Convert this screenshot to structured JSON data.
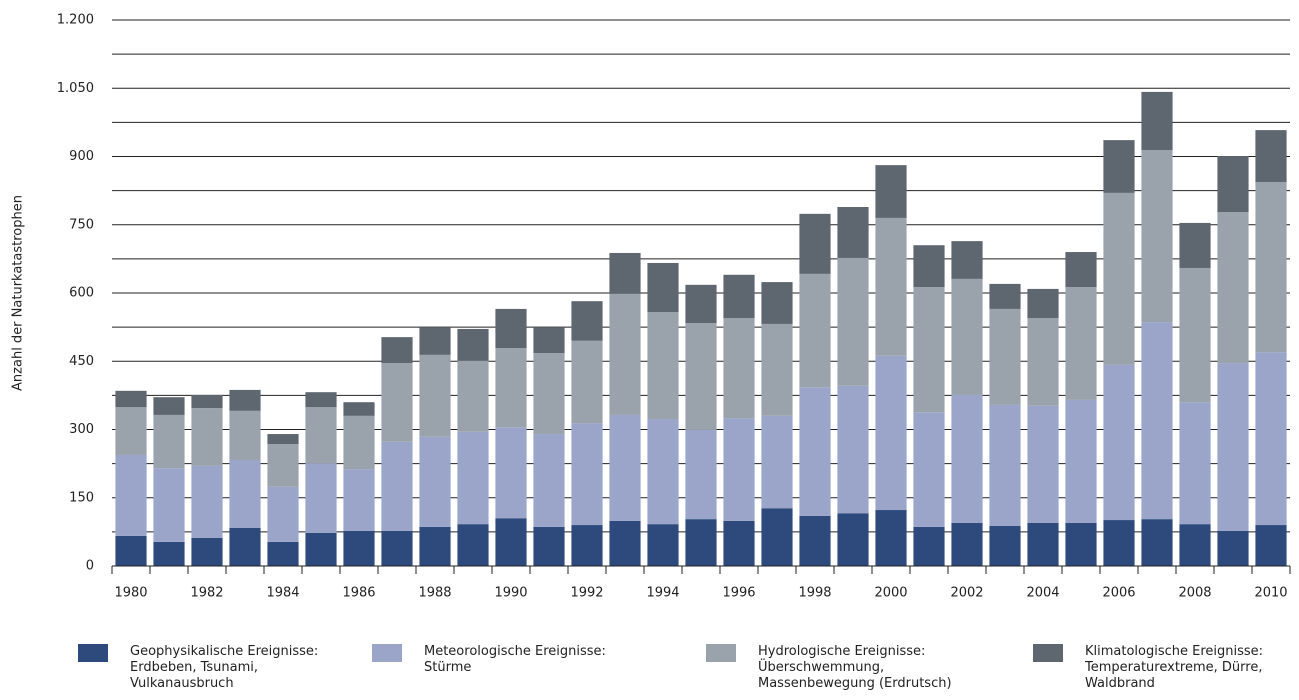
{
  "chart_data": {
    "type": "stacked_bar",
    "y_label": "Anzahl der Naturkatastrophen",
    "categories": [
      "1980",
      null,
      "1982",
      null,
      "1984",
      null,
      "1986",
      null,
      "1988",
      null,
      "1990",
      null,
      "1992",
      null,
      "1994",
      null,
      "1996",
      null,
      "1998",
      null,
      "2000",
      null,
      "2002",
      null,
      "2004",
      null,
      "2006",
      null,
      "2008",
      null,
      "2010"
    ],
    "series": [
      {
        "name": "Geophysikalische Ereignisse: Erdbeben, Tsunami, Vulkanausbruch",
        "color": "#2e4a7d",
        "values": [
          66,
          53,
          62,
          84,
          53,
          73,
          77,
          77,
          86,
          92,
          105,
          86,
          90,
          99,
          92,
          103,
          99,
          127,
          110,
          116,
          123,
          86,
          95,
          88,
          95,
          95,
          101,
          103,
          92,
          77,
          90
        ]
      },
      {
        "name": "Meteorologische Ereignisse: Stürme",
        "color": "#9aa5c9",
        "values": [
          178,
          162,
          158,
          149,
          121,
          153,
          136,
          196,
          198,
          203,
          200,
          204,
          224,
          233,
          231,
          196,
          226,
          203,
          283,
          280,
          339,
          252,
          281,
          266,
          257,
          270,
          341,
          433,
          268,
          369,
          380
        ]
      },
      {
        "name": "Hydrologische Ereignisse: Überschwemmung, Massenbewegung (Erdrutsch)",
        "color": "#9aa3ab",
        "values": [
          105,
          117,
          127,
          108,
          94,
          123,
          117,
          173,
          180,
          156,
          174,
          178,
          181,
          266,
          235,
          235,
          220,
          202,
          249,
          281,
          303,
          275,
          255,
          211,
          193,
          248,
          378,
          378,
          295,
          332,
          374
        ]
      },
      {
        "name": "Klimatologische Ereignisse: Temperaturextreme, Dürre, Waldbrand",
        "color": "#5e6670",
        "values": [
          36,
          39,
          29,
          46,
          22,
          33,
          30,
          57,
          61,
          70,
          86,
          57,
          87,
          90,
          108,
          84,
          95,
          92,
          132,
          112,
          116,
          92,
          83,
          55,
          64,
          77,
          116,
          128,
          99,
          123,
          114
        ]
      }
    ],
    "ylim": [
      0,
      1200
    ],
    "yticks": [
      0,
      150,
      300,
      450,
      600,
      750,
      900,
      {
        "value": 1050,
        "label": "1.050"
      },
      {
        "value": 1200,
        "label": "1.200"
      }
    ],
    "minor_grid": [
      75,
      225,
      375,
      525,
      675,
      825,
      975,
      1125
    ],
    "grid": true
  }
}
